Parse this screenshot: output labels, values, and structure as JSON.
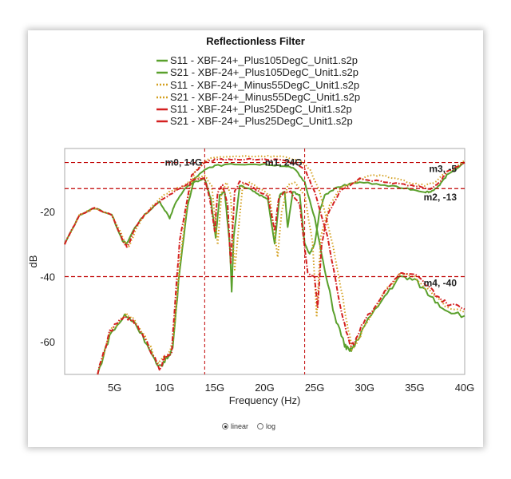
{
  "chart_data": {
    "type": "line",
    "title": "Reflectionless Filter",
    "xlabel": "Frequency (Hz)",
    "ylabel": "dB",
    "xlim": [
      0,
      40
    ],
    "ylim": [
      -70,
      -0.7
    ],
    "x_ticks": [
      {
        "v": 5,
        "label": "5G"
      },
      {
        "v": 10,
        "label": "10G"
      },
      {
        "v": 15,
        "label": "15G"
      },
      {
        "v": 20,
        "label": "20G"
      },
      {
        "v": 25,
        "label": "25G"
      },
      {
        "v": 30,
        "label": "30G"
      },
      {
        "v": 35,
        "label": "35G"
      },
      {
        "v": 40,
        "label": "40G"
      }
    ],
    "y_ticks": [
      {
        "v": -20,
        "label": "-20"
      },
      {
        "v": -40,
        "label": "-40"
      },
      {
        "v": -60,
        "label": "-60"
      }
    ],
    "grid": false,
    "legend_placement": "top-center",
    "series": [
      {
        "name": "S11 - XBF-24+_Plus105DegC_Unit1.s2p",
        "color": "#5aa02c",
        "style": "solid",
        "x": [
          0,
          1.5,
          3,
          4.7,
          5.8,
          6.2,
          7,
          8,
          9.5,
          10.5,
          11,
          12,
          13,
          14,
          14.6,
          15.1,
          15.5,
          16,
          16.5,
          16.7,
          16.9,
          17.5,
          18.5,
          19.5,
          20.3,
          21,
          21.5,
          22,
          22.3,
          22.8,
          23.5,
          24,
          24.5,
          25,
          25.5,
          26,
          27,
          28,
          29.5,
          32,
          34.3,
          36,
          36.6,
          37.5,
          38.2,
          40
        ],
        "y": [
          -30,
          -21,
          -19,
          -21,
          -29,
          -30,
          -25,
          -21,
          -17,
          -22,
          -18,
          -13,
          -11,
          -10,
          -16,
          -28,
          -15,
          -14,
          -30,
          -44,
          -28,
          -12,
          -13,
          -15,
          -16,
          -30,
          -15,
          -14,
          -25,
          -14,
          -15,
          -30,
          -33,
          -30,
          -20,
          -15,
          -13,
          -12,
          -11,
          -12,
          -13,
          -14,
          -14,
          -12,
          -9,
          -5
        ]
      },
      {
        "name": "S21 - XBF-24+_Plus105DegC_Unit1.s2p",
        "color": "#5aa02c",
        "style": "solid",
        "x": [
          3.3,
          4.5,
          6,
          7,
          8.5,
          9.3,
          10,
          10.8,
          11.5,
          12.3,
          13,
          14,
          15,
          17,
          20,
          22,
          23,
          24,
          25,
          26,
          27,
          28,
          28.5,
          29,
          30,
          32,
          33.5,
          35,
          36.6,
          38,
          40
        ],
        "y": [
          -70,
          -58,
          -52,
          -54,
          -62,
          -68,
          -66,
          -62,
          -38,
          -18,
          -10,
          -7,
          -6,
          -5.5,
          -5.6,
          -6,
          -7,
          -11,
          -22,
          -38,
          -52,
          -61,
          -63,
          -61,
          -55,
          -46,
          -40,
          -41,
          -46,
          -50,
          -52
        ]
      },
      {
        "name": "S11 - XBF-24+_Minus55DegC_Unit1.s2p",
        "color": "#d4a020",
        "style": "dotted",
        "x": [
          0,
          1.5,
          3,
          4.7,
          6,
          6.4,
          7.2,
          8,
          9.5,
          10.5,
          12,
          13,
          14,
          14.7,
          15.3,
          15.7,
          16.2,
          16.6,
          17,
          17.8,
          18.5,
          19.5,
          20.5,
          21.3,
          21.7,
          22.3,
          23,
          24,
          24.8,
          25.2,
          25.6,
          26.5,
          27.5,
          29,
          30.5,
          32,
          34.3,
          36,
          37,
          38.2,
          40
        ],
        "y": [
          -30,
          -21,
          -19,
          -21,
          -29,
          -31,
          -25,
          -21,
          -16,
          -14,
          -12,
          -10,
          -9,
          -12,
          -30,
          -14,
          -11,
          -15,
          -38,
          -12,
          -11,
          -13,
          -15,
          -34,
          -20,
          -12,
          -11,
          -15,
          -30,
          -52,
          -28,
          -18,
          -13,
          -11,
          -9,
          -9,
          -11,
          -12,
          -11,
          -8,
          -4.5
        ]
      },
      {
        "name": "S21 - XBF-24+_Minus55DegC_Unit1.s2p",
        "color": "#d4a020",
        "style": "dotted",
        "x": [
          3.3,
          4.5,
          6,
          7,
          8.5,
          9.3,
          10,
          10.8,
          11.5,
          12.3,
          13,
          14,
          15,
          17,
          20,
          22,
          23.5,
          24.5,
          25.5,
          26.8,
          28,
          28.7,
          29.3,
          30,
          32,
          33.5,
          35,
          36.6,
          38,
          40
        ],
        "y": [
          -70,
          -57,
          -51.5,
          -53,
          -61,
          -67,
          -65,
          -61,
          -36,
          -16,
          -8,
          -4.5,
          -3.5,
          -3,
          -3,
          -3.2,
          -4.5,
          -7,
          -14,
          -30,
          -50,
          -62,
          -60,
          -55,
          -45,
          -39,
          -40,
          -45,
          -49,
          -51
        ]
      },
      {
        "name": "S11 - XBF-24+_Plus25DegC_Unit1.s2p",
        "color": "#d42020",
        "style": "dashdot",
        "x": [
          0,
          1.5,
          3,
          4.7,
          6,
          6.3,
          7,
          8,
          9.5,
          10.5,
          12,
          13,
          14,
          14.5,
          15,
          15.3,
          15.8,
          16.3,
          16.6,
          17,
          17.5,
          18.5,
          19.5,
          20.3,
          21,
          21.4,
          22,
          22.6,
          23.5,
          24.3,
          25,
          25.3,
          25.7,
          26.3,
          27.5,
          29.5,
          32,
          34.3,
          36.6,
          37.5,
          38.2,
          40
        ],
        "y": [
          -30,
          -21,
          -19,
          -21,
          -30,
          -31,
          -25,
          -21,
          -17,
          -15,
          -12,
          -10,
          -10,
          -16,
          -26,
          -14,
          -12,
          -18,
          -36,
          -14,
          -11,
          -12,
          -14,
          -15,
          -26,
          -16,
          -14,
          -14,
          -18,
          -39,
          -40,
          -50,
          -30,
          -21,
          -14,
          -10,
          -11,
          -12,
          -13,
          -11,
          -8,
          -5
        ]
      },
      {
        "name": "S21 - XBF-24+_Plus25DegC_Unit1.s2p",
        "color": "#d42020",
        "style": "dashdot",
        "x": [
          3.3,
          4.5,
          6,
          7,
          8.5,
          9.5,
          10,
          10.7,
          11.5,
          12.7,
          14,
          15,
          17,
          20,
          22,
          23,
          24,
          25,
          26.3,
          27.5,
          28.5,
          29,
          30,
          32,
          33.5,
          35,
          36.6,
          38,
          40
        ],
        "y": [
          -70,
          -57,
          -52,
          -54,
          -62,
          -68,
          -65,
          -63,
          -29,
          -9,
          -5,
          -4.2,
          -4,
          -4,
          -4.3,
          -5.2,
          -7,
          -14,
          -28,
          -48,
          -61,
          -60,
          -53,
          -45,
          -39,
          -39.5,
          -44,
          -48,
          -50
        ]
      }
    ],
    "markers": {
      "vertical": [
        {
          "v": 14,
          "label": "m0, 14G"
        },
        {
          "v": 24,
          "label": "m1, 24G"
        }
      ],
      "horizontal": [
        {
          "v": -5,
          "label": "m3, -5"
        },
        {
          "v": -13,
          "label": "m2, -13"
        },
        {
          "v": -40,
          "label": "m4, -40"
        }
      ],
      "color": "#c00000"
    }
  },
  "controls": {
    "scale_options": [
      {
        "label": "linear",
        "selected": true
      },
      {
        "label": "log",
        "selected": false
      }
    ]
  }
}
